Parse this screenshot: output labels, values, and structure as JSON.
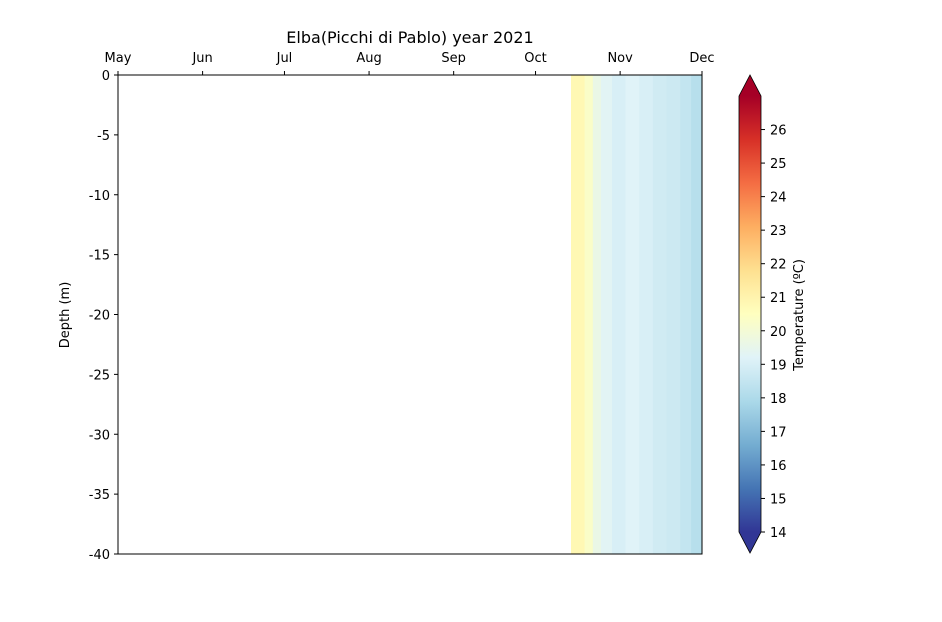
{
  "chart_data": {
    "type": "heatmap",
    "title": "Elba(Picchi di Pablo) year 2021",
    "xlabel": "",
    "ylabel": "Depth (m)",
    "x_ticks": [
      "May",
      "Jun",
      "Jul",
      "Aug",
      "Sep",
      "Oct",
      "Nov",
      "Dec"
    ],
    "x_range": [
      "2021-05-01",
      "2021-12-01"
    ],
    "y_ticks": [
      0,
      -5,
      -10,
      -15,
      -20,
      -25,
      -30,
      -35,
      -40
    ],
    "ylim": [
      -40,
      0
    ],
    "colorbar": {
      "label": "Temperature (ºC)",
      "range": [
        14,
        27
      ],
      "ticks": [
        14,
        15,
        16,
        17,
        18,
        19,
        20,
        21,
        22,
        23,
        24,
        25,
        26
      ],
      "colormap": "RdYlBu_r",
      "extend": "both"
    },
    "data_start": "2021-10-14",
    "data_end": "2021-12-01",
    "segments": [
      {
        "start": "2021-10-14",
        "end": "2021-10-19",
        "temp": 20.8
      },
      {
        "start": "2021-10-19",
        "end": "2021-10-22",
        "temp": 20.3
      },
      {
        "start": "2021-10-22",
        "end": "2021-10-25",
        "temp": 19.6
      },
      {
        "start": "2021-10-25",
        "end": "2021-10-29",
        "temp": 19.3
      },
      {
        "start": "2021-10-29",
        "end": "2021-11-03",
        "temp": 19.0
      },
      {
        "start": "2021-11-03",
        "end": "2021-11-08",
        "temp": 19.2
      },
      {
        "start": "2021-11-08",
        "end": "2021-11-13",
        "temp": 19.0
      },
      {
        "start": "2021-11-13",
        "end": "2021-11-18",
        "temp": 18.8
      },
      {
        "start": "2021-11-18",
        "end": "2021-11-23",
        "temp": 18.7
      },
      {
        "start": "2021-11-23",
        "end": "2021-11-27",
        "temp": 18.5
      },
      {
        "start": "2021-11-27",
        "end": "2021-12-01",
        "temp": 18.2
      }
    ]
  }
}
